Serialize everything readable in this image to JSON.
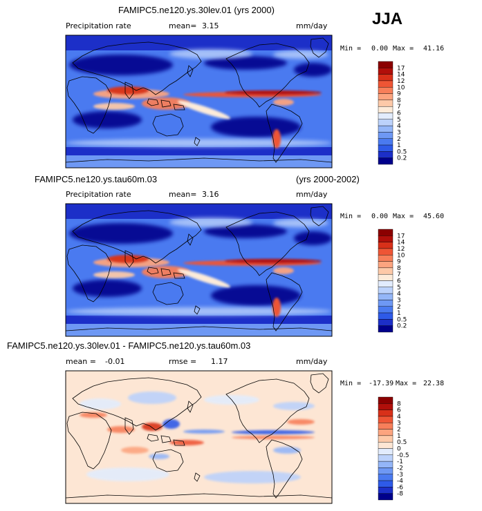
{
  "season_label": "JJA",
  "colors": {
    "precip": [
      "#00008b",
      "#1c2fc8",
      "#2e5ae8",
      "#4a7af0",
      "#6e98f4",
      "#94b6f8",
      "#bcd2fb",
      "#e2ecfd",
      "#fdebd9",
      "#fdc9a8",
      "#fca47f",
      "#f77f5a",
      "#ee5535",
      "#d83019",
      "#b10f0a",
      "#8b0000"
    ],
    "diff": [
      "#00008b",
      "#1c2fc8",
      "#2e5ae8",
      "#4a7af0",
      "#6e98f4",
      "#94b6f8",
      "#bcd2fb",
      "#e2ecfd",
      "#fde6d4",
      "#fdc9a8",
      "#fca47f",
      "#f77f5a",
      "#ee5535",
      "#d83019",
      "#b10f0a",
      "#8b0000"
    ]
  },
  "panels": [
    {
      "title": "FAMIPC5.ne120.ys.30lev.01 (yrs 2000)",
      "title_right": "",
      "field": "Precipitation rate",
      "stat1_label": "mean=",
      "stat1_value": "3.15",
      "stat2_label": "",
      "stat2_value": "",
      "units": "mm/day",
      "min_label": "Min =",
      "min_value": "0.00",
      "max_label": "Max =",
      "max_value": "41.16"
    },
    {
      "title": "FAMIPC5.ne120.ys.tau60m.03",
      "title_right": "(yrs 2000-2002)",
      "field": "Precipitation rate",
      "stat1_label": "mean=",
      "stat1_value": "3.16",
      "stat2_label": "",
      "stat2_value": "",
      "units": "mm/day",
      "min_label": "Min =",
      "min_value": "0.00",
      "max_label": "Max =",
      "max_value": "45.60"
    },
    {
      "title": "FAMIPC5.ne120.ys.30lev.01 - FAMIPC5.ne120.ys.tau60m.03",
      "title_right": "",
      "field": "",
      "stat1_label": "mean =",
      "stat1_value": "-0.01",
      "stat2_label": "rmse =",
      "stat2_value": "1.17",
      "units": "mm/day",
      "min_label": "Min =",
      "min_value": "-17.39",
      "max_label": "Max =",
      "max_value": "22.38"
    }
  ],
  "chart_data": [
    {
      "type": "heatmap",
      "title": "FAMIPC5.ne120.ys.30lev.01 (yrs 2000)",
      "variable": "Precipitation rate",
      "units": "mm/day",
      "mean": 3.15,
      "min": 0.0,
      "max": 41.16,
      "colorbar_levels": [
        "17",
        "14",
        "12",
        "10",
        "9",
        "8",
        "7",
        "6",
        "5",
        "4",
        "3",
        "2",
        "1",
        "0.5",
        "0.2"
      ]
    },
    {
      "type": "heatmap",
      "title": "FAMIPC5.ne120.ys.tau60m.03",
      "years": "(yrs 2000-2002)",
      "variable": "Precipitation rate",
      "units": "mm/day",
      "mean": 3.16,
      "min": 0.0,
      "max": 45.6,
      "colorbar_levels": [
        "17",
        "14",
        "12",
        "10",
        "9",
        "8",
        "7",
        "6",
        "5",
        "4",
        "3",
        "2",
        "1",
        "0.5",
        "0.2"
      ]
    },
    {
      "type": "heatmap",
      "title": "FAMIPC5.ne120.ys.30lev.01 - FAMIPC5.ne120.ys.tau60m.03",
      "units": "mm/day",
      "mean": -0.01,
      "rmse": 1.17,
      "min": -17.39,
      "max": 22.38,
      "colorbar_levels": [
        "8",
        "6",
        "4",
        "3",
        "2",
        "1",
        "0.5",
        "0",
        "-0.5",
        "-1",
        "-2",
        "-3",
        "-4",
        "-6",
        "-8"
      ]
    }
  ]
}
